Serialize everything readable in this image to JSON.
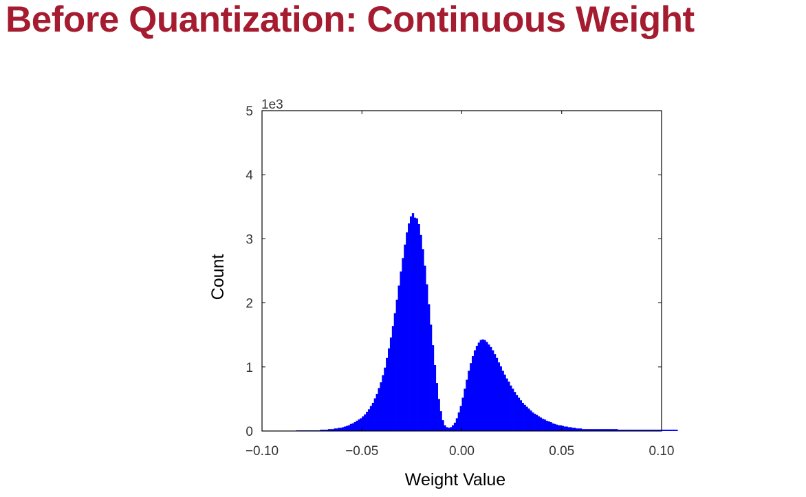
{
  "slide": {
    "title": "Before Quantization: Continuous Weight"
  },
  "colors": {
    "title": "#a51c30",
    "bars": "#0000ff",
    "axis": "#000000",
    "tick_text": "#333333"
  },
  "chart_data": {
    "type": "bar",
    "title": "",
    "xlabel": "Weight Value",
    "ylabel": "Count",
    "y_multiplier_label": "1e3",
    "xlim": [
      -0.1,
      0.1
    ],
    "ylim": [
      0,
      5
    ],
    "x_ticks": [
      -0.1,
      -0.05,
      0.0,
      0.05,
      0.1
    ],
    "x_tick_labels": [
      "−0.10",
      "−0.05",
      "0.00",
      "0.05",
      "0.10"
    ],
    "y_ticks": [
      0,
      1,
      2,
      3,
      4,
      5
    ],
    "y_tick_labels": [
      "0",
      "1",
      "2",
      "3",
      "4",
      "5"
    ],
    "grid": false,
    "histogram": {
      "bin_range": [
        -0.1,
        0.1
      ],
      "bin_width": 0.001,
      "values": [
        0.0,
        0.0,
        0.0,
        0.0,
        0.0,
        0.0,
        0.0,
        0.0,
        0.0,
        0.0,
        0.0,
        0.0,
        0.0,
        0.0,
        0.0,
        0.0,
        0.0,
        0.01,
        0.01,
        0.01,
        0.01,
        0.01,
        0.01,
        0.01,
        0.01,
        0.01,
        0.01,
        0.01,
        0.01,
        0.02,
        0.02,
        0.02,
        0.02,
        0.03,
        0.03,
        0.03,
        0.04,
        0.04,
        0.05,
        0.05,
        0.06,
        0.07,
        0.08,
        0.09,
        0.11,
        0.12,
        0.14,
        0.16,
        0.18,
        0.2,
        0.23,
        0.26,
        0.3,
        0.34,
        0.39,
        0.44,
        0.51,
        0.58,
        0.67,
        0.76,
        0.87,
        0.99,
        1.14,
        1.29,
        1.46,
        1.64,
        1.84,
        2.05,
        2.27,
        2.49,
        2.7,
        2.91,
        3.1,
        3.24,
        3.35,
        3.4,
        3.33,
        3.32,
        3.23,
        3.06,
        2.84,
        2.58,
        2.29,
        1.98,
        1.66,
        1.34,
        1.03,
        0.75,
        0.5,
        0.31,
        0.17,
        0.09,
        0.06,
        0.05,
        0.06,
        0.09,
        0.13,
        0.2,
        0.29,
        0.39,
        0.52,
        0.66,
        0.8,
        0.94,
        1.06,
        1.17,
        1.26,
        1.33,
        1.38,
        1.42,
        1.43,
        1.42,
        1.39,
        1.35,
        1.31,
        1.26,
        1.2,
        1.14,
        1.07,
        1.01,
        0.94,
        0.88,
        0.82,
        0.77,
        0.71,
        0.66,
        0.61,
        0.56,
        0.52,
        0.48,
        0.44,
        0.41,
        0.38,
        0.35,
        0.32,
        0.29,
        0.27,
        0.25,
        0.23,
        0.21,
        0.19,
        0.18,
        0.16,
        0.15,
        0.14,
        0.12,
        0.11,
        0.1,
        0.09,
        0.09,
        0.08,
        0.07,
        0.07,
        0.06,
        0.06,
        0.05,
        0.05,
        0.04,
        0.04,
        0.04,
        0.03,
        0.03,
        0.03,
        0.03,
        0.03,
        0.03,
        0.03,
        0.03,
        0.03,
        0.03,
        0.03,
        0.03,
        0.03,
        0.03,
        0.03,
        0.03,
        0.03,
        0.03,
        0.02,
        0.02,
        0.02,
        0.02,
        0.02,
        0.02,
        0.02,
        0.02,
        0.02,
        0.02,
        0.02,
        0.02,
        0.02,
        0.02,
        0.02,
        0.02,
        0.02,
        0.02,
        0.02,
        0.02,
        0.02,
        0.02,
        0.02,
        0.02,
        0.02,
        0.02,
        0.02,
        0.02,
        0.02,
        0.02
      ]
    }
  }
}
